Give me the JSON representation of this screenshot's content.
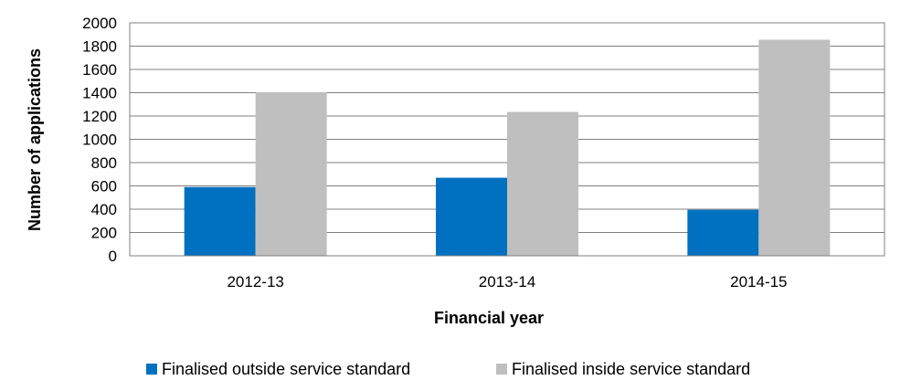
{
  "chart_data": {
    "type": "bar",
    "title": "",
    "xlabel": "Financial year",
    "ylabel": "Number of applications",
    "categories": [
      "2012-13",
      "2013-14",
      "2014-15"
    ],
    "series": [
      {
        "name": "Finalised outside service standard",
        "values": [
          590,
          670,
          395
        ],
        "color": "#0070c0"
      },
      {
        "name": "Finalised inside service standard",
        "values": [
          1405,
          1235,
          1855
        ],
        "color": "#bfbfbf"
      }
    ],
    "ylim": [
      0,
      2000
    ],
    "yticks": [
      0,
      200,
      400,
      600,
      800,
      1000,
      1200,
      1400,
      1600,
      1800,
      2000
    ],
    "grid": true,
    "legend_position": "bottom"
  }
}
